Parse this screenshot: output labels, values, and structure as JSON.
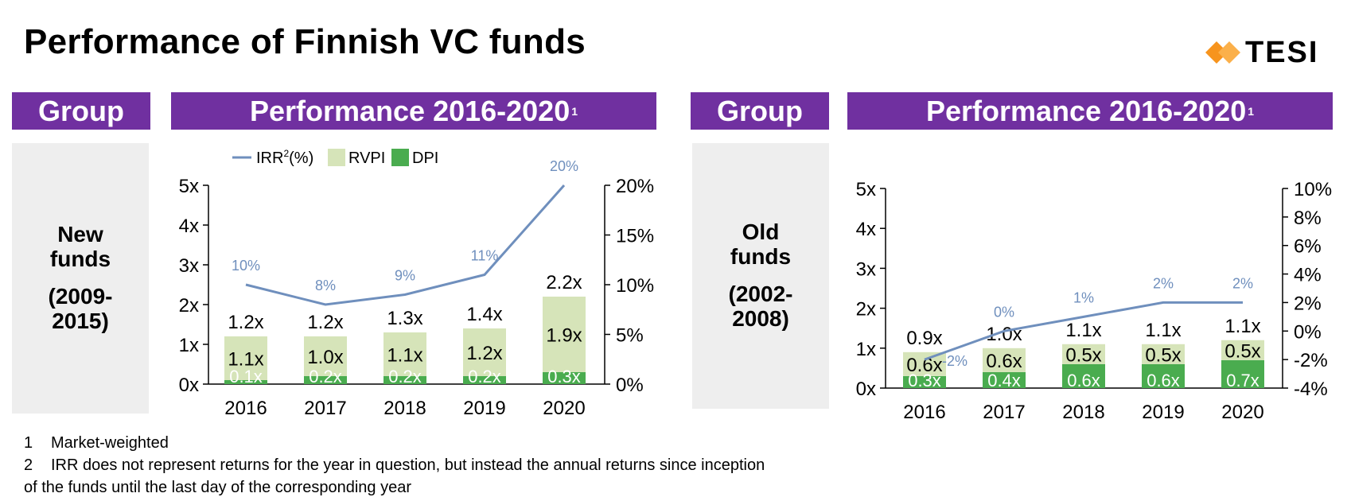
{
  "title": "Performance of Finnish VC funds",
  "logo": {
    "text": "TESI",
    "accent": "#f7941d"
  },
  "colors": {
    "header": "#7030a0",
    "rvpi": "#d6e4b9",
    "dpi": "#4aac4f",
    "irr": "#6f8fbd",
    "panel": "#eeeeee"
  },
  "panels": [
    {
      "group_header": "Group",
      "perf_header": "Performance 2016-2020",
      "perf_sup": "1",
      "group_name": [
        "New",
        "funds"
      ],
      "group_years": [
        "(2009-",
        "2015)"
      ]
    },
    {
      "group_header": "Group",
      "perf_header": "Performance 2016-2020",
      "perf_sup": "1",
      "group_name": [
        "Old",
        "funds"
      ],
      "group_years": [
        "(2002-",
        "2008)"
      ]
    }
  ],
  "legend": {
    "irr": "IRR",
    "irr_sup": "2",
    "irr_unit": "(%)",
    "rvpi": "RVPI",
    "dpi": "DPI"
  },
  "chart_data": [
    {
      "type": "bar",
      "categories": [
        "2016",
        "2017",
        "2018",
        "2019",
        "2020"
      ],
      "series": [
        {
          "name": "DPI",
          "values": [
            0.1,
            0.2,
            0.2,
            0.2,
            0.3
          ],
          "labels": [
            "0.1x",
            "0.2x",
            "0.2x",
            "0.2x",
            "0.3x"
          ]
        },
        {
          "name": "RVPI",
          "values": [
            1.1,
            1.0,
            1.1,
            1.2,
            1.9
          ],
          "labels": [
            "1.1x",
            "1.0x",
            "1.1x",
            "1.2x",
            "1.9x"
          ]
        },
        {
          "name": "IRR(%)",
          "axis": "right",
          "values": [
            10,
            8,
            9,
            11,
            20
          ],
          "labels": [
            "10%",
            "8%",
            "9%",
            "11%",
            "20%"
          ]
        }
      ],
      "totals": [
        1.2,
        1.2,
        1.3,
        1.4,
        2.2
      ],
      "total_labels": [
        "1.2x",
        "1.2x",
        "1.3x",
        "1.4x",
        "2.2x"
      ],
      "y_left": {
        "min": 0,
        "max": 5,
        "ticks": [
          "0x",
          "1x",
          "2x",
          "3x",
          "4x",
          "5x"
        ]
      },
      "y_right": {
        "min": 0,
        "max": 20,
        "ticks": [
          "0%",
          "5%",
          "10%",
          "15%",
          "20%"
        ]
      },
      "legend": "top-left"
    },
    {
      "type": "bar",
      "categories": [
        "2016",
        "2017",
        "2018",
        "2019",
        "2020"
      ],
      "series": [
        {
          "name": "DPI",
          "values": [
            0.3,
            0.4,
            0.6,
            0.6,
            0.7
          ],
          "labels": [
            "0.3x",
            "0.4x",
            "0.6x",
            "0.6x",
            "0.7x"
          ]
        },
        {
          "name": "RVPI",
          "values": [
            0.6,
            0.6,
            0.5,
            0.5,
            0.5
          ],
          "labels": [
            "0.6x",
            "0.6x",
            "0.5x",
            "0.5x",
            "0.5x"
          ]
        },
        {
          "name": "IRR(%)",
          "axis": "right",
          "values": [
            -2,
            0,
            1,
            2,
            2
          ],
          "labels": [
            "-2%",
            "0%",
            "1%",
            "2%",
            "2%"
          ]
        }
      ],
      "totals": [
        0.9,
        1.0,
        1.1,
        1.1,
        1.1
      ],
      "total_labels": [
        "0.9x",
        "1.0x",
        "1.1x",
        "1.1x",
        "1.1x"
      ],
      "y_left": {
        "min": 0,
        "max": 5,
        "ticks": [
          "0x",
          "1x",
          "2x",
          "3x",
          "4x",
          "5x"
        ]
      },
      "y_right": {
        "min": -4,
        "max": 10,
        "ticks": [
          "-4%",
          "-2%",
          "0%",
          "2%",
          "4%",
          "6%",
          "8%",
          "10%"
        ]
      }
    }
  ],
  "footnotes": [
    {
      "num": "1",
      "text": "Market-weighted"
    },
    {
      "num": "2",
      "text": "IRR does not represent returns for the year in question, but instead the annual returns since inception"
    },
    {
      "num": "",
      "text": "of the funds until the last day of the corresponding year"
    }
  ]
}
